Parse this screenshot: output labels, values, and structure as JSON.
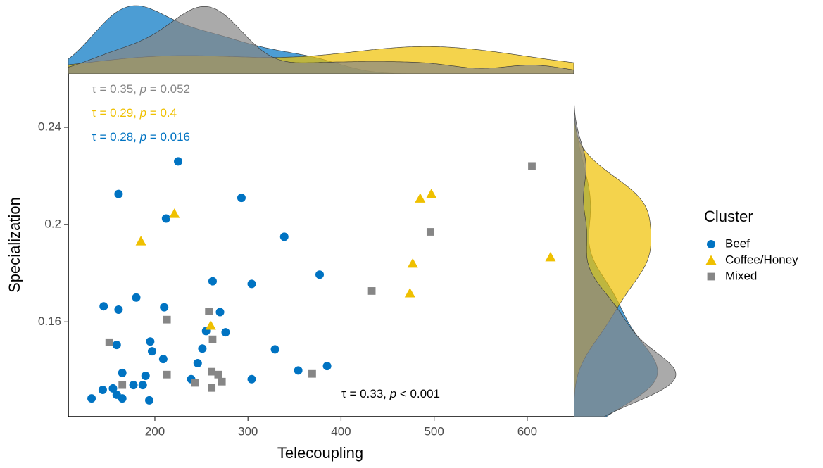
{
  "chart_data": {
    "type": "scatter",
    "x_label": "Telecoupling",
    "y_label": "Specialization",
    "legend_title": "Cluster",
    "legend": "right",
    "xlim": [
      107,
      650
    ],
    "xticks": [
      200,
      300,
      400,
      500,
      600
    ],
    "ylim": [
      0.121,
      0.262
    ],
    "yticks": [
      0.16,
      0.2,
      0.24
    ],
    "series": [
      {
        "name": "Beef",
        "color": "#0073C2",
        "marker": "circle",
        "annotation": [
          "τ = 0.28, ",
          "p",
          " = 0.016"
        ],
        "x": [
          132,
          144,
          155,
          159,
          165,
          145,
          161,
          180,
          159,
          165,
          161,
          194,
          190,
          187,
          177,
          195,
          197,
          209,
          210,
          212,
          225,
          239,
          246,
          251,
          255,
          262,
          270,
          276,
          293,
          304,
          304,
          329,
          339,
          354,
          377,
          385
        ],
        "values": [
          0.1285,
          0.132,
          0.1326,
          0.13,
          0.1285,
          0.1664,
          0.165,
          0.17,
          0.1505,
          0.139,
          0.2126,
          0.1277,
          0.1378,
          0.134,
          0.134,
          0.1519,
          0.1479,
          0.1447,
          0.166,
          0.2025,
          0.226,
          0.1364,
          0.143,
          0.149,
          0.1562,
          0.1767,
          0.164,
          0.1557,
          0.211,
          0.1756,
          0.1364,
          0.1487,
          0.195,
          0.14,
          0.1794,
          0.1418
        ]
      },
      {
        "name": "Coffee/Honey",
        "color": "#EFC000",
        "marker": "triangle",
        "annotation": [
          "τ = 0.29, ",
          "p",
          " = 0.4"
        ],
        "x": [
          185,
          221,
          260,
          474,
          477,
          485,
          497,
          625
        ],
        "values": [
          0.1932,
          0.2045,
          0.1585,
          0.1718,
          0.184,
          0.2108,
          0.2126,
          0.1866
        ]
      },
      {
        "name": "Mixed",
        "color": "#868686",
        "marker": "square",
        "annotation": [
          "τ = 0.35, ",
          "p",
          " = 0.052"
        ],
        "x": [
          151,
          165,
          213,
          213,
          243,
          258,
          262,
          261,
          261,
          268,
          272,
          369,
          433,
          496,
          605
        ],
        "values": [
          0.1516,
          0.134,
          0.1609,
          0.1383,
          0.1349,
          0.1643,
          0.1528,
          0.1395,
          0.1328,
          0.1383,
          0.1354,
          0.1386,
          0.1727,
          0.197,
          0.2241
        ]
      }
    ],
    "overall_annotation": [
      "τ = 0.33, ",
      "p",
      " < 0.001"
    ]
  }
}
